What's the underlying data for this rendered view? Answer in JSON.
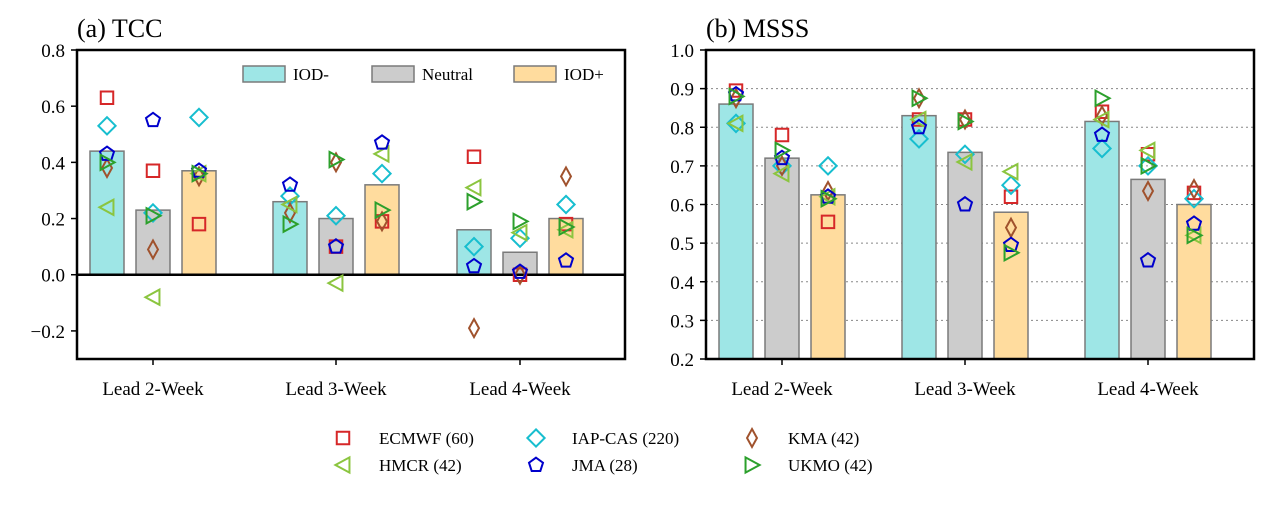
{
  "colors": {
    "IOD-": "#9ee6e6",
    "Neutral": "#cccccc",
    "IOD+": "#ffdc9e",
    "ECMWF": "#d62728",
    "IAP-CAS": "#17becf",
    "KMA": "#a0522d",
    "HMCR": "#8bc53f",
    "JMA": "#0000cc",
    "UKMO": "#2ca02c"
  },
  "chart_data": [
    {
      "id": "tcc",
      "type": "bar",
      "title": "(a) TCC",
      "categories": [
        "Lead 2-Week",
        "Lead 3-Week",
        "Lead 4-Week"
      ],
      "ylim": [
        -0.3,
        0.8
      ],
      "yticks": [
        -0.2,
        0.0,
        0.2,
        0.4,
        0.6,
        0.8
      ],
      "ytick_labels": [
        "−0.2",
        "0.0",
        "0.2",
        "0.4",
        "0.6",
        "0.8"
      ],
      "series": [
        {
          "name": "IOD-",
          "values": [
            0.44,
            0.26,
            0.16
          ]
        },
        {
          "name": "Neutral",
          "values": [
            0.23,
            0.2,
            0.08
          ]
        },
        {
          "name": "IOD+",
          "values": [
            0.37,
            0.32,
            0.2
          ]
        }
      ],
      "models": [
        {
          "name": "ECMWF",
          "values": [
            [
              0.63,
              0.37,
              0.18
            ],
            [
              null,
              0.1,
              0.19
            ],
            [
              0.42,
              0.0,
              0.18
            ]
          ]
        },
        {
          "name": "IAP-CAS",
          "values": [
            [
              0.53,
              0.22,
              0.56
            ],
            [
              0.28,
              0.21,
              0.36
            ],
            [
              0.1,
              0.13,
              0.25
            ]
          ]
        },
        {
          "name": "KMA",
          "values": [
            [
              0.38,
              0.09,
              0.35
            ],
            [
              0.22,
              0.4,
              0.19
            ],
            [
              -0.19,
              0.0,
              0.35
            ]
          ]
        },
        {
          "name": "HMCR",
          "values": [
            [
              0.24,
              -0.08,
              0.36
            ],
            [
              0.25,
              -0.03,
              0.43
            ],
            [
              0.31,
              0.15,
              0.16
            ]
          ]
        },
        {
          "name": "JMA",
          "values": [
            [
              0.43,
              0.55,
              0.37
            ],
            [
              0.32,
              0.1,
              0.47
            ],
            [
              0.03,
              0.01,
              0.05
            ]
          ]
        },
        {
          "name": "UKMO",
          "values": [
            [
              0.4,
              0.21,
              0.36
            ],
            [
              0.18,
              0.41,
              0.23
            ],
            [
              0.26,
              0.19,
              0.17
            ]
          ]
        }
      ],
      "legend": [
        "IOD-",
        "Neutral",
        "IOD+"
      ],
      "legend_placement": "top-right",
      "grid": false
    },
    {
      "id": "msss",
      "type": "bar",
      "title": "(b) MSSS",
      "categories": [
        "Lead 2-Week",
        "Lead 3-Week",
        "Lead 4-Week"
      ],
      "ylim": [
        0.2,
        1.0
      ],
      "yticks": [
        0.2,
        0.3,
        0.4,
        0.5,
        0.6,
        0.7,
        0.8,
        0.9,
        1.0
      ],
      "ytick_labels": [
        "0.2",
        "0.3",
        "0.4",
        "0.5",
        "0.6",
        "0.7",
        "0.8",
        "0.9",
        "1.0"
      ],
      "series": [
        {
          "name": "IOD-",
          "values": [
            0.86,
            0.83,
            0.815
          ]
        },
        {
          "name": "Neutral",
          "values": [
            0.72,
            0.735,
            0.665
          ]
        },
        {
          "name": "IOD+",
          "values": [
            0.625,
            0.58,
            0.6
          ]
        }
      ],
      "models": [
        {
          "name": "ECMWF",
          "values": [
            [
              0.895,
              0.78,
              0.555
            ],
            [
              0.82,
              0.82,
              0.62
            ],
            [
              0.84,
              0.73,
              0.63
            ]
          ]
        },
        {
          "name": "IAP-CAS",
          "values": [
            [
              0.81,
              0.7,
              0.7
            ],
            [
              0.77,
              0.73,
              0.65
            ],
            [
              0.745,
              0.7,
              0.615
            ]
          ]
        },
        {
          "name": "KMA",
          "values": [
            [
              0.875,
              0.7,
              0.635
            ],
            [
              0.875,
              0.82,
              0.54
            ],
            [
              0.83,
              0.635,
              0.64
            ]
          ]
        },
        {
          "name": "HMCR",
          "values": [
            [
              0.81,
              0.68,
              0.62
            ],
            [
              0.82,
              0.71,
              0.685
            ],
            [
              0.82,
              0.74,
              0.52
            ]
          ]
        },
        {
          "name": "JMA",
          "values": [
            [
              0.885,
              0.72,
              0.62
            ],
            [
              0.8,
              0.6,
              0.495
            ],
            [
              0.78,
              0.455,
              0.55
            ]
          ]
        },
        {
          "name": "UKMO",
          "values": [
            [
              0.88,
              0.74,
              0.615
            ],
            [
              0.875,
              0.815,
              0.475
            ],
            [
              0.875,
              0.7,
              0.52
            ]
          ]
        }
      ],
      "grid": true,
      "grid_axis": "y"
    }
  ],
  "model_legend": [
    {
      "name": "ECMWF",
      "label": "ECMWF (60)",
      "marker": "square"
    },
    {
      "name": "IAP-CAS",
      "label": "IAP-CAS (220)",
      "marker": "diamond"
    },
    {
      "name": "KMA",
      "label": "KMA (42)",
      "marker": "thin_diamond"
    },
    {
      "name": "HMCR",
      "label": "HMCR (42)",
      "marker": "triangle_left"
    },
    {
      "name": "JMA",
      "label": "JMA (28)",
      "marker": "pentagon"
    },
    {
      "name": "UKMO",
      "label": "UKMO (42)",
      "marker": "triangle_right"
    }
  ]
}
